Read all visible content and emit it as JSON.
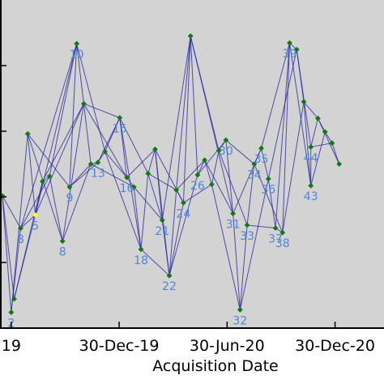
{
  "chart_data": {
    "type": "scatter",
    "title": "",
    "xlabel": "Acquisition Date",
    "ylabel": "",
    "x_ticks": [
      {
        "date": "2019-06-30",
        "label": "19"
      },
      {
        "date": "2019-12-30",
        "label": "30-Dec-19"
      },
      {
        "date": "2020-06-30",
        "label": "30-Jun-20"
      },
      {
        "date": "2020-12-30",
        "label": "30-Dec-20"
      }
    ],
    "xlim": [
      "2019-06-11",
      "2021-03-23"
    ],
    "ylim": [
      0,
      100
    ],
    "grid": false,
    "colors": {
      "plot_background": "#d3d3d3",
      "edge": "#2a2aa0",
      "node": "#0f7a0f",
      "reference_node": "#ffff33",
      "label": "#4f86d6"
    },
    "reference_point": 5,
    "points": [
      {
        "id": "1",
        "date": "2019-06-15",
        "y": 40.3,
        "show_label": false
      },
      {
        "id": "2",
        "date": "2019-06-30",
        "y": 4.8,
        "show_label": true
      },
      {
        "id": "",
        "date": "2019-07-05",
        "y": 8.9,
        "show_label": false
      },
      {
        "id": "8",
        "date": "2019-07-16",
        "y": 30.4,
        "show_label": true
      },
      {
        "id": "",
        "date": "2019-07-28",
        "y": 59.2,
        "show_label": false
      },
      {
        "id": "5",
        "date": "2019-08-10",
        "y": 34.5,
        "show_label": true
      },
      {
        "id": "",
        "date": "2019-08-22",
        "y": 44.7,
        "show_label": false
      },
      {
        "id": "",
        "date": "2019-09-03",
        "y": 46.3,
        "show_label": false
      },
      {
        "id": "8",
        "date": "2019-09-25",
        "y": 26.5,
        "show_label": true
      },
      {
        "id": "9",
        "date": "2019-10-07",
        "y": 43.0,
        "show_label": true
      },
      {
        "id": "10",
        "date": "2019-10-19",
        "y": 86.7,
        "show_label": true
      },
      {
        "id": "",
        "date": "2019-10-31",
        "y": 68.4,
        "show_label": false
      },
      {
        "id": "",
        "date": "2019-11-12",
        "y": 50.0,
        "show_label": false
      },
      {
        "id": "13",
        "date": "2019-11-24",
        "y": 50.5,
        "show_label": true
      },
      {
        "id": "",
        "date": "2019-12-06",
        "y": 53.8,
        "show_label": false
      },
      {
        "id": "15",
        "date": "2019-12-31",
        "y": 64.1,
        "show_label": true
      },
      {
        "id": "16",
        "date": "2020-01-12",
        "y": 45.9,
        "show_label": true
      },
      {
        "id": "",
        "date": "2020-01-24",
        "y": 43.0,
        "show_label": false
      },
      {
        "id": "18",
        "date": "2020-02-05",
        "y": 24.0,
        "show_label": true
      },
      {
        "id": "",
        "date": "2020-02-17",
        "y": 47.1,
        "show_label": false
      },
      {
        "id": "",
        "date": "2020-02-29",
        "y": 54.5,
        "show_label": false
      },
      {
        "id": "21",
        "date": "2020-03-12",
        "y": 32.9,
        "show_label": true
      },
      {
        "id": "22",
        "date": "2020-03-24",
        "y": 16.0,
        "show_label": true
      },
      {
        "id": "",
        "date": "2020-04-05",
        "y": 42.1,
        "show_label": false
      },
      {
        "id": "24",
        "date": "2020-04-17",
        "y": 38.2,
        "show_label": true
      },
      {
        "id": "",
        "date": "2020-04-29",
        "y": 89.0,
        "show_label": false
      },
      {
        "id": "26",
        "date": "2020-05-11",
        "y": 46.7,
        "show_label": true
      },
      {
        "id": "",
        "date": "2020-05-23",
        "y": 51.2,
        "show_label": false
      },
      {
        "id": "",
        "date": "2020-06-04",
        "y": 43.8,
        "show_label": false
      },
      {
        "id": "",
        "date": "2020-06-16",
        "y": 54.1,
        "show_label": false
      },
      {
        "id": "30",
        "date": "2020-06-28",
        "y": 57.3,
        "show_label": true
      },
      {
        "id": "31",
        "date": "2020-07-10",
        "y": 34.9,
        "show_label": true
      },
      {
        "id": "32",
        "date": "2020-07-22",
        "y": 5.6,
        "show_label": true
      },
      {
        "id": "33",
        "date": "2020-08-03",
        "y": 31.4,
        "show_label": true
      },
      {
        "id": "34",
        "date": "2020-08-15",
        "y": 50.0,
        "show_label": true
      },
      {
        "id": "35",
        "date": "2020-08-27",
        "y": 54.8,
        "show_label": true
      },
      {
        "id": "36",
        "date": "2020-09-08",
        "y": 45.5,
        "show_label": true
      },
      {
        "id": "37",
        "date": "2020-09-20",
        "y": 30.5,
        "show_label": true
      },
      {
        "id": "38",
        "date": "2020-10-02",
        "y": 29.1,
        "show_label": true
      },
      {
        "id": "39",
        "date": "2020-10-14",
        "y": 86.9,
        "show_label": true
      },
      {
        "id": "",
        "date": "2020-10-26",
        "y": 84.9,
        "show_label": false
      },
      {
        "id": "",
        "date": "2020-11-07",
        "y": 69.0,
        "show_label": false
      },
      {
        "id": "43",
        "date": "2020-11-19",
        "y": 43.4,
        "show_label": true
      },
      {
        "id": "44",
        "date": "2020-11-19",
        "y": 55.2,
        "show_label": true
      },
      {
        "id": "",
        "date": "2020-12-01",
        "y": 63.9,
        "show_label": false
      },
      {
        "id": "",
        "date": "2020-12-13",
        "y": 59.8,
        "show_label": false
      },
      {
        "id": "",
        "date": "2020-12-25",
        "y": 56.4,
        "show_label": false
      },
      {
        "id": "",
        "date": "2021-01-06",
        "y": 50.0,
        "show_label": false
      }
    ],
    "edges": [
      [
        0,
        1
      ],
      [
        0,
        2
      ],
      [
        0,
        3
      ],
      [
        1,
        3
      ],
      [
        1,
        4
      ],
      [
        2,
        5
      ],
      [
        2,
        6
      ],
      [
        3,
        5
      ],
      [
        3,
        7
      ],
      [
        3,
        10
      ],
      [
        4,
        5
      ],
      [
        4,
        8
      ],
      [
        4,
        9
      ],
      [
        5,
        6
      ],
      [
        5,
        10
      ],
      [
        5,
        11
      ],
      [
        6,
        7
      ],
      [
        6,
        11
      ],
      [
        7,
        8
      ],
      [
        7,
        10
      ],
      [
        8,
        11
      ],
      [
        8,
        12
      ],
      [
        9,
        10
      ],
      [
        9,
        12
      ],
      [
        9,
        13
      ],
      [
        10,
        11
      ],
      [
        10,
        14
      ],
      [
        11,
        12
      ],
      [
        11,
        15
      ],
      [
        11,
        16
      ],
      [
        12,
        13
      ],
      [
        12,
        17
      ],
      [
        13,
        14
      ],
      [
        13,
        15
      ],
      [
        14,
        15
      ],
      [
        14,
        16
      ],
      [
        14,
        18
      ],
      [
        15,
        16
      ],
      [
        15,
        18
      ],
      [
        15,
        19
      ],
      [
        16,
        17
      ],
      [
        16,
        20
      ],
      [
        17,
        18
      ],
      [
        17,
        21
      ],
      [
        18,
        19
      ],
      [
        18,
        22
      ],
      [
        19,
        20
      ],
      [
        19,
        21
      ],
      [
        19,
        23
      ],
      [
        20,
        21
      ],
      [
        20,
        22
      ],
      [
        20,
        24
      ],
      [
        21,
        22
      ],
      [
        21,
        25
      ],
      [
        22,
        23
      ],
      [
        22,
        24
      ],
      [
        22,
        26
      ],
      [
        23,
        24
      ],
      [
        23,
        25
      ],
      [
        23,
        27
      ],
      [
        24,
        25
      ],
      [
        24,
        28
      ],
      [
        25,
        26
      ],
      [
        25,
        29
      ],
      [
        25,
        31
      ],
      [
        26,
        27
      ],
      [
        26,
        30
      ],
      [
        27,
        28
      ],
      [
        27,
        31
      ],
      [
        28,
        29
      ],
      [
        28,
        32
      ],
      [
        29,
        30
      ],
      [
        29,
        33
      ],
      [
        30,
        31
      ],
      [
        30,
        34
      ],
      [
        31,
        32
      ],
      [
        31,
        35
      ],
      [
        32,
        33
      ],
      [
        32,
        36
      ],
      [
        33,
        34
      ],
      [
        33,
        37
      ],
      [
        34,
        35
      ],
      [
        34,
        38
      ],
      [
        35,
        36
      ],
      [
        35,
        39
      ],
      [
        36,
        37
      ],
      [
        36,
        40
      ],
      [
        37,
        38
      ],
      [
        37,
        39
      ],
      [
        38,
        39
      ],
      [
        38,
        41
      ],
      [
        39,
        40
      ],
      [
        39,
        42
      ],
      [
        40,
        41
      ],
      [
        40,
        43
      ],
      [
        41,
        42
      ],
      [
        41,
        44
      ],
      [
        42,
        43
      ],
      [
        42,
        45
      ],
      [
        43,
        44
      ],
      [
        43,
        46
      ],
      [
        44,
        45
      ],
      [
        44,
        47
      ],
      [
        45,
        46
      ],
      [
        46,
        47
      ]
    ]
  }
}
